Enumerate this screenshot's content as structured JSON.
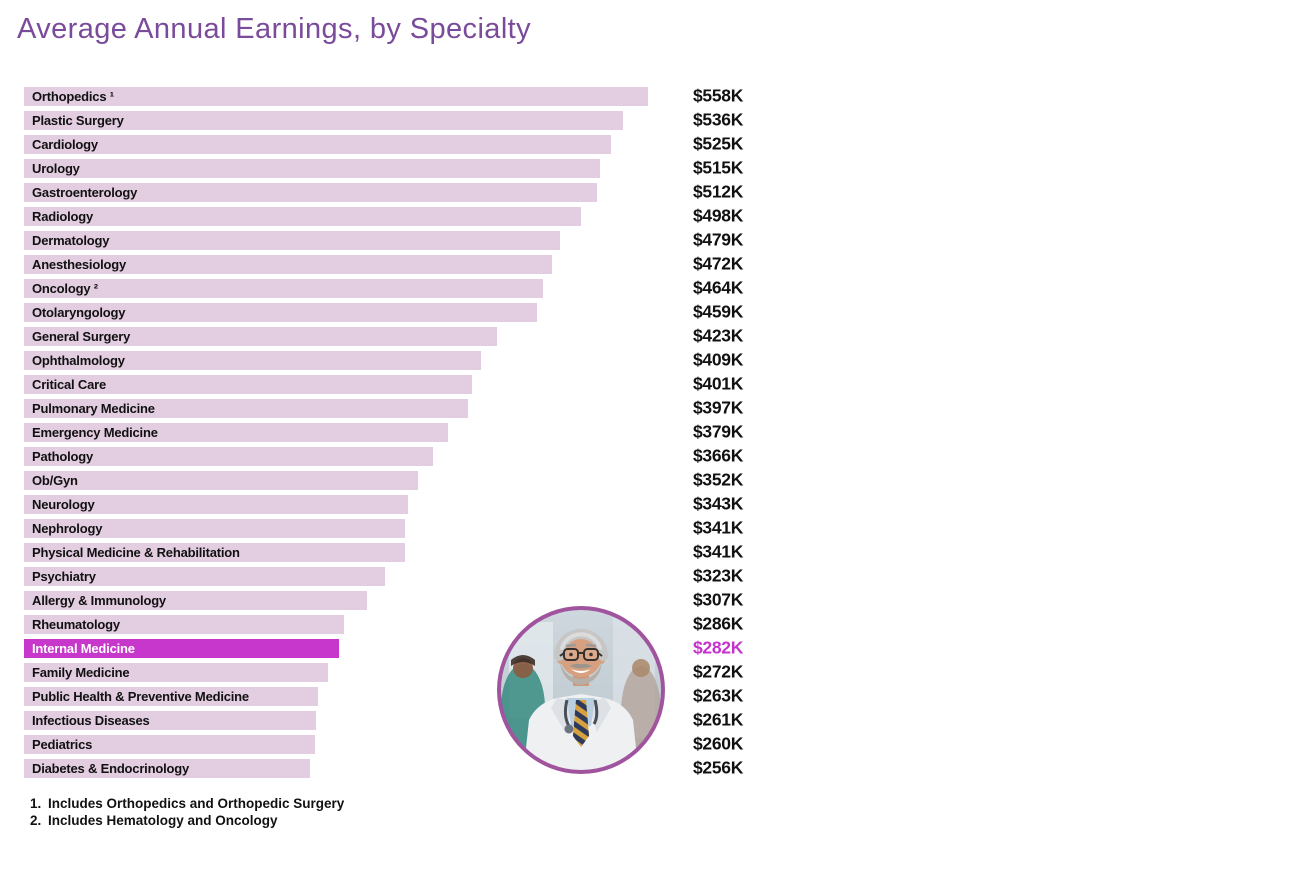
{
  "page": {
    "title": "Average Annual Earnings, by Specialty"
  },
  "colors": {
    "title": "#7a4b9a",
    "bar": "#e3cde1",
    "bar_highlight": "#c837cb",
    "value_highlight": "#c434cd",
    "photo_ring": "#a1549e",
    "text": "#111111"
  },
  "chart_data": {
    "type": "bar",
    "orientation": "horizontal",
    "title": "Average Annual Earnings, by Specialty",
    "unit": "USD thousands per year",
    "xlim": [
      0,
      558
    ],
    "grid": false,
    "legend": false,
    "highlight_category": "Internal Medicine",
    "categories": [
      "Orthopedics ¹",
      "Plastic Surgery",
      "Cardiology",
      "Urology",
      "Gastroenterology",
      "Radiology",
      "Dermatology",
      "Anesthesiology",
      "Oncology ²",
      "Otolaryngology",
      "General Surgery",
      "Ophthalmology",
      "Critical Care",
      "Pulmonary Medicine",
      "Emergency Medicine",
      "Pathology",
      "Ob/Gyn",
      "Neurology",
      "Nephrology",
      "Physical Medicine & Rehabilitation",
      "Psychiatry",
      "Allergy & Immunology",
      "Rheumatology",
      "Internal Medicine",
      "Family Medicine",
      "Public Health & Preventive Medicine",
      "Infectious Diseases",
      "Pediatrics",
      "Diabetes & Endocrinology"
    ],
    "values": [
      558,
      536,
      525,
      515,
      512,
      498,
      479,
      472,
      464,
      459,
      423,
      409,
      401,
      397,
      379,
      366,
      352,
      343,
      341,
      341,
      323,
      307,
      286,
      282,
      272,
      263,
      261,
      260,
      256
    ],
    "value_labels": [
      "$558K",
      "$536K",
      "$525K",
      "$515K",
      "$512K",
      "$498K",
      "$479K",
      "$472K",
      "$464K",
      "$459K",
      "$423K",
      "$409K",
      "$401K",
      "$397K",
      "$379K",
      "$366K",
      "$352K",
      "$343K",
      "$341K",
      "$341K",
      "$323K",
      "$307K",
      "$286K",
      "$282K",
      "$272K",
      "$263K",
      "$261K",
      "$260K",
      "$256K"
    ]
  },
  "footnotes": [
    {
      "num": "1.",
      "text": "Includes Orthopedics and Orthopedic Surgery"
    },
    {
      "num": "2.",
      "text": "Includes Hematology and Oncology"
    }
  ],
  "photo": {
    "description": "Circular portrait of a smiling gray-haired male doctor with glasses, white coat, striped tie and stethoscope, hospital background"
  }
}
